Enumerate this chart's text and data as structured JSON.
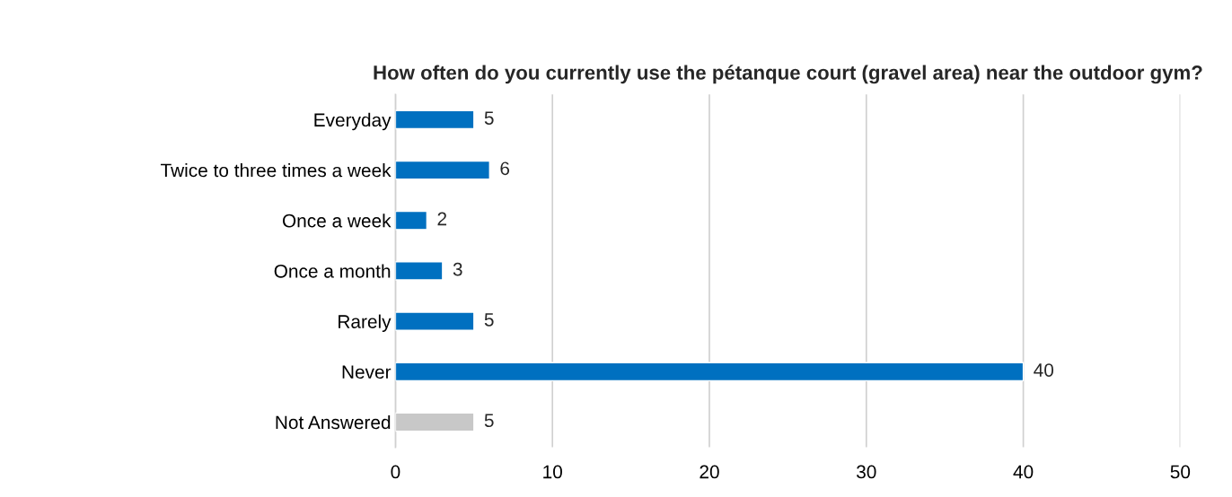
{
  "chart_data": {
    "type": "bar",
    "orientation": "horizontal",
    "title": "How often do you currently use the pétanque court (gravel area) near the outdoor gym?",
    "categories": [
      "Everyday",
      "Twice to three times a week",
      "Once a week",
      "Once a month",
      "Rarely",
      "Never",
      "Not Answered"
    ],
    "values": [
      5,
      6,
      2,
      3,
      5,
      40,
      5
    ],
    "colors": [
      "#0070c0",
      "#0070c0",
      "#0070c0",
      "#0070c0",
      "#0070c0",
      "#0070c0",
      "#c8c8c8"
    ],
    "xlim": [
      0,
      50
    ],
    "xticks": [
      0,
      10,
      20,
      30,
      40,
      50
    ],
    "grid": "x",
    "data_labels": true,
    "legend": false
  }
}
